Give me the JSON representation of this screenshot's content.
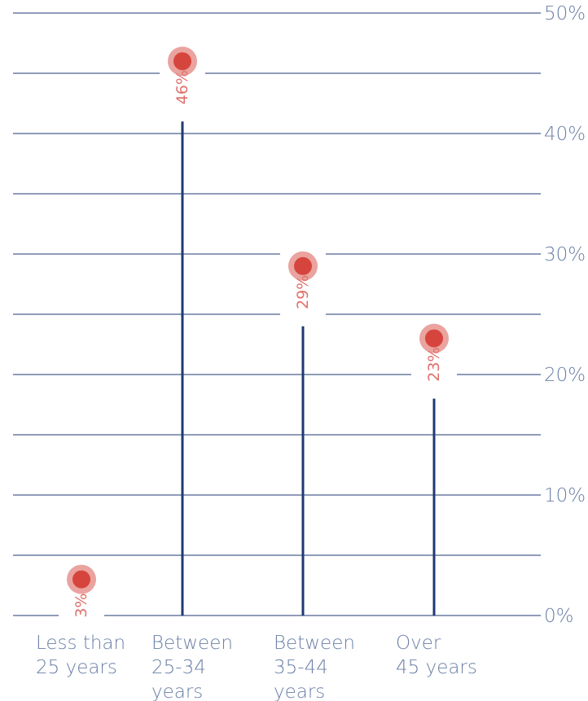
{
  "chart_data": {
    "type": "lollipop",
    "categories": [
      [
        "Less than",
        "25 years"
      ],
      [
        "Between",
        "25-34",
        "years"
      ],
      [
        "Between",
        "35-44",
        "years"
      ],
      [
        "Over",
        "45 years"
      ]
    ],
    "values": [
      3,
      46,
      29,
      23
    ],
    "data_labels": [
      "3%",
      "46%",
      "29%",
      "23%"
    ],
    "ylim": [
      0,
      50
    ],
    "yticks": [
      0,
      10,
      20,
      30,
      40,
      50
    ],
    "ytick_labels": [
      "0%",
      "10%",
      "20%",
      "30%",
      "40%",
      "50%"
    ],
    "grid": true,
    "y_axis_position": "right",
    "colors": {
      "gridline": "#1f3a73",
      "stem": "#1f3a73",
      "dot": "#d6453d",
      "dot_halo": "#eaa39f",
      "data_label": "#e0706a",
      "axis_text": "#6b7fa6"
    }
  }
}
